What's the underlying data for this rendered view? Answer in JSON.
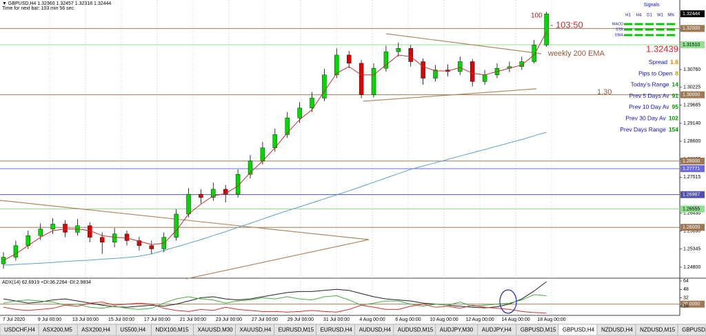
{
  "header": {
    "quote": "▼ GBPUSD,H4  1.32360 1.32457 1.32318 1.32444",
    "timer": "Time for next bar: 103 min 56 sec."
  },
  "chart_data": {
    "type": "candlestick",
    "open": [
      1.249,
      1.251,
      1.2545,
      1.2575,
      1.2595,
      1.261,
      1.2585,
      1.2605,
      1.257,
      1.2555,
      1.258,
      1.256,
      1.2545,
      1.2535,
      1.257,
      1.264,
      1.27,
      1.269,
      1.2715,
      1.27,
      1.276,
      1.28,
      1.284,
      1.288,
      1.293,
      1.296,
      1.299,
      1.306,
      1.312,
      1.3095,
      1.3,
      1.308,
      1.313,
      1.314,
      1.31,
      1.305,
      1.3075,
      1.307,
      1.31,
      1.304,
      1.306,
      1.308,
      1.3085,
      1.31,
      1.315
    ],
    "high": [
      1.2525,
      1.256,
      1.259,
      1.2612,
      1.2628,
      1.2622,
      1.2625,
      1.2615,
      1.2585,
      1.2598,
      1.259,
      1.2572,
      1.256,
      1.2585,
      1.2655,
      1.2718,
      1.2715,
      1.2735,
      1.2728,
      1.2775,
      1.2818,
      1.2858,
      1.2898,
      1.2948,
      1.2978,
      1.3008,
      1.3078,
      1.314,
      1.3132,
      1.3105,
      1.3095,
      1.3148,
      1.3158,
      1.315,
      1.311,
      1.309,
      1.3092,
      1.3115,
      1.3108,
      1.3075,
      1.3095,
      1.31,
      1.3115,
      1.3165,
      1.325
    ],
    "low": [
      1.2475,
      1.25,
      1.2535,
      1.2562,
      1.258,
      1.257,
      1.2575,
      1.2555,
      1.252,
      1.254,
      1.2545,
      1.253,
      1.252,
      1.2525,
      1.256,
      1.263,
      1.2672,
      1.268,
      1.2675,
      1.269,
      1.2748,
      1.279,
      1.2828,
      1.287,
      1.2915,
      1.2948,
      1.298,
      1.305,
      1.308,
      1.299,
      1.2992,
      1.307,
      1.3115,
      1.3085,
      1.303,
      1.304,
      1.3055,
      1.306,
      1.3025,
      1.303,
      1.305,
      1.3068,
      1.3075,
      1.3095,
      1.3145
    ],
    "close": [
      1.251,
      1.2545,
      1.2575,
      1.2595,
      1.261,
      1.2585,
      1.2605,
      1.257,
      1.2555,
      1.258,
      1.256,
      1.2545,
      1.2535,
      1.257,
      1.264,
      1.27,
      1.269,
      1.2715,
      1.27,
      1.276,
      1.28,
      1.284,
      1.288,
      1.293,
      1.296,
      1.299,
      1.306,
      1.312,
      1.3095,
      1.3,
      1.308,
      1.313,
      1.314,
      1.31,
      1.305,
      1.3075,
      1.307,
      1.31,
      1.304,
      1.306,
      1.308,
      1.3085,
      1.31,
      1.315,
      1.3244
    ],
    "up_color": "#00d800",
    "down_color": "#e00000",
    "ema_fast": {
      "color": "#c03030",
      "values": [
        1.25,
        1.252,
        1.2545,
        1.257,
        1.259,
        1.2595,
        1.2595,
        1.259,
        1.2575,
        1.257,
        1.2568,
        1.2558,
        1.2548,
        1.2552,
        1.259,
        1.264,
        1.267,
        1.2695,
        1.2702,
        1.2725,
        1.2765,
        1.28,
        1.284,
        1.2885,
        1.2925,
        1.2955,
        1.301,
        1.3065,
        1.3085,
        1.306,
        1.306,
        1.309,
        1.312,
        1.3115,
        1.3085,
        1.3072,
        1.3072,
        1.3082,
        1.3065,
        1.306,
        1.307,
        1.308,
        1.309,
        1.312,
        1.319
      ]
    },
    "ema_slow": {
      "color": "#5aa0c8",
      "values": [
        1.2486,
        1.2488,
        1.249,
        1.2492,
        1.2494,
        1.2497,
        1.2499,
        1.2501,
        1.2504,
        1.2506,
        1.2509,
        1.2513,
        1.252,
        1.253,
        1.2541,
        1.2552,
        1.2563,
        1.2575,
        1.2587,
        1.26,
        1.2612,
        1.2625,
        1.2638,
        1.265,
        1.2662,
        1.2674,
        1.2686,
        1.2698,
        1.271,
        1.2723,
        1.2736,
        1.2749,
        1.2762,
        1.2775,
        1.2785,
        1.2795,
        1.2805,
        1.2815,
        1.2825,
        1.2835,
        1.2845,
        1.2855,
        1.2865,
        1.2876,
        1.2887
      ]
    },
    "ylim": [
      1.2455,
      1.3261
    ],
    "yticks": [
      {
        "value": 1.3195,
        "label": "1.31950"
      },
      {
        "value": 1.3076,
        "label": "1.30760"
      },
      1.30225,
      1.29685,
      {
        "value": 1.2914,
        "label": "1.29140"
      },
      {
        "value": 1.286,
        "label": "1.28600"
      },
      1.28055,
      1.27515,
      {
        "value": 1.2643,
        "label": "1.26430"
      },
      {
        "value": 1.2589,
        "label": "1.25890"
      },
      1.25345,
      {
        "value": 1.248,
        "label": "1.24800"
      }
    ],
    "levels": [
      {
        "value": 1.32444,
        "label": "1.32444",
        "color": "#000000",
        "line": false
      },
      {
        "value": 1.32,
        "label": "1.32000",
        "color": "#a07850",
        "line": true
      },
      {
        "value": 1.3151,
        "label": "1.31510",
        "color": "#8fe08f",
        "line": true
      },
      {
        "value": 1.3,
        "label": "1.30000",
        "color": "#a07850",
        "line": true
      },
      {
        "value": 1.28,
        "label": "1.28000",
        "color": "#a07850",
        "line": true
      },
      {
        "value": 1.27771,
        "label": "1.27771",
        "color": "#6a6ae0",
        "line": true
      },
      {
        "value": 1.26987,
        "label": "1.26987",
        "color": "#5050b0",
        "line": true
      },
      {
        "value": 1.26555,
        "label": "1.26555",
        "color": "#8fe08f",
        "line": true
      },
      {
        "value": 1.26,
        "label": "1.26000",
        "color": "#a07850",
        "line": true
      }
    ],
    "time_labels": [
      "7 Jul 2020",
      "9 Jul 00:00",
      "13 Jul 00:00",
      "15 Jul 00:00",
      "17 Jul 00:00",
      "21 Jul 00:00",
      "23 Jul 00:00",
      "27 Jul 00:00",
      "29 Jul 00:00",
      "31 Jul 00:00",
      "4 Aug 00:00",
      "6 Aug 00:00",
      "10 Aug 00:00",
      "12 Aug 00:00",
      "14 Aug 00:00",
      "18 Aug 00:00"
    ],
    "grid": true
  },
  "annotations": {
    "count": 100,
    "countdown": "- 103:50",
    "ema_label": "weekly 200 EMA",
    "level_label": "1.30",
    "price": 1.32439
  },
  "signals": {
    "title": "Signals",
    "timeframes": [
      "H1",
      "H4",
      "D1",
      "W1",
      "MN"
    ],
    "rows": [
      "MACD",
      "STR",
      "EMA"
    ],
    "color": "#00c800"
  },
  "info": [
    {
      "label": "Spread",
      "value": 1.6,
      "color": "#e08000"
    },
    {
      "label": "Pips to Open",
      "value": 8,
      "color": "#c0a000"
    },
    {
      "label": "Today's Range",
      "value": 14,
      "color": "#00a000"
    },
    {
      "label": "Prev 5 Days Av",
      "value": 91,
      "color": "#00a000"
    },
    {
      "label": "Prev 10 Day Av",
      "value": 95,
      "color": "#00a000"
    },
    {
      "label": "Prev 30 Day Av",
      "value": 102,
      "color": "#00a000"
    },
    {
      "label": "Prev Days Range",
      "value": 154,
      "color": "#00a000"
    }
  ],
  "adx": {
    "title": "ADX(14) 62.6919 +DI:36.2264 -DI:2.9834",
    "ylim": [
      0,
      68
    ],
    "yticks": [
      64,
      48,
      32,
      16
    ],
    "level": {
      "value": 20,
      "label": "20.0000",
      "color": "#a07850"
    },
    "lines": [
      {
        "color": "#202020",
        "values": [
          30,
          26,
          22,
          24,
          28,
          30,
          26,
          22,
          18,
          15,
          14,
          16,
          18,
          16,
          20,
          26,
          32,
          34,
          30,
          28,
          30,
          34,
          38,
          42,
          44,
          44,
          46,
          48,
          46,
          40,
          34,
          30,
          28,
          26,
          22,
          20,
          18,
          16,
          14,
          13,
          15,
          20,
          30,
          45,
          62.7
        ]
      },
      {
        "color": "#40b040",
        "values": [
          22,
          26,
          28,
          26,
          24,
          18,
          20,
          14,
          12,
          16,
          12,
          10,
          12,
          22,
          30,
          34,
          30,
          28,
          22,
          26,
          28,
          32,
          30,
          34,
          30,
          28,
          34,
          36,
          28,
          18,
          22,
          26,
          26,
          20,
          16,
          20,
          18,
          24,
          16,
          18,
          20,
          22,
          28,
          38,
          36
        ]
      },
      {
        "color": "#d03030",
        "values": [
          14,
          10,
          8,
          10,
          12,
          18,
          16,
          22,
          24,
          18,
          20,
          22,
          20,
          12,
          8,
          6,
          10,
          8,
          14,
          10,
          8,
          6,
          6,
          5,
          6,
          8,
          6,
          5,
          10,
          18,
          14,
          10,
          10,
          16,
          20,
          14,
          16,
          12,
          18,
          14,
          12,
          10,
          6,
          4,
          3
        ]
      }
    ]
  },
  "tabs": [
    "USDCHF,H4",
    "ASX200,M5",
    "ASX200,H4",
    "US500,H4",
    "NDX100,M15",
    "XAUUSD,M30",
    "XAUUSD,H4",
    "EURUSD,M15",
    "EURUSD,H4",
    "AUDUSD,H4",
    "AUDUSD,M15",
    "AUDJPY,M30",
    "AUDJPY,H4",
    "GBPUSD,M15",
    "GBPUSD,H4",
    "NZDUSD,H4",
    "NZDUSD,M15",
    "GBPUSD,H4",
    "US"
  ],
  "active_tab": 14
}
